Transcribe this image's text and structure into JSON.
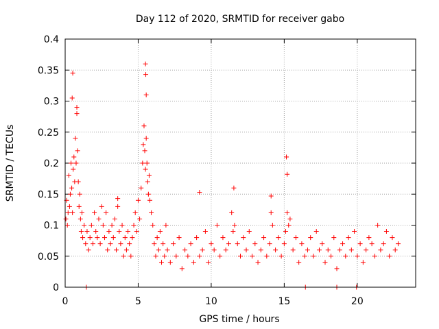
{
  "chart_data": {
    "type": "scatter",
    "title": "Day 112 of 2020, SRMTID for receiver gabo",
    "xlabel": "GPS time / hours",
    "ylabel": "SRMTID / TECUs",
    "xlim": [
      0,
      24
    ],
    "ylim": [
      0,
      0.4
    ],
    "xticks": [
      0,
      5,
      10,
      15,
      20
    ],
    "xtick_labels": [
      "0",
      "5",
      "10",
      "15",
      "20"
    ],
    "yticks": [
      0,
      0.05,
      0.1,
      0.15,
      0.2,
      0.25,
      0.3,
      0.35,
      0.4
    ],
    "ytick_labels": [
      "0",
      "0.05",
      "0.1",
      "0.15",
      "0.2",
      "0.25",
      "0.3",
      "0.35",
      "0.4"
    ],
    "grid": true,
    "marker": "+",
    "colors": {
      "points": "#ff0000",
      "grid": "#a0a0a0",
      "axes": "#000000"
    },
    "series": [
      {
        "name": "SRMTID",
        "x": [
          0.05,
          0.1,
          0.15,
          0.2,
          0.25,
          0.3,
          0.35,
          0.4,
          0.45,
          0.5,
          0.55,
          0.6,
          0.65,
          0.7,
          0.75,
          0.8,
          0.85,
          0.9,
          0.95,
          1.0,
          1.05,
          1.1,
          1.15,
          1.2,
          1.3,
          1.4,
          1.5,
          1.6,
          1.7,
          1.8,
          1.9,
          2.0,
          2.1,
          2.2,
          2.3,
          2.4,
          2.5,
          2.6,
          2.7,
          2.8,
          2.9,
          3.0,
          3.1,
          3.2,
          3.3,
          3.4,
          3.5,
          3.6,
          3.7,
          3.8,
          3.9,
          4.0,
          4.1,
          4.2,
          4.3,
          4.4,
          4.5,
          4.6,
          4.7,
          4.8,
          4.9,
          5.0,
          5.1,
          5.2,
          5.3,
          5.35,
          5.4,
          5.45,
          5.5,
          5.55,
          5.6,
          5.65,
          5.7,
          5.75,
          5.8,
          5.9,
          6.0,
          6.1,
          6.2,
          6.3,
          6.4,
          6.5,
          6.6,
          6.7,
          6.8,
          6.9,
          7.0,
          7.2,
          7.4,
          7.6,
          7.8,
          8.0,
          8.2,
          8.4,
          8.6,
          8.8,
          9.0,
          9.2,
          9.4,
          9.6,
          9.8,
          10.0,
          10.2,
          10.4,
          10.6,
          10.8,
          11.0,
          11.2,
          11.4,
          11.5,
          11.6,
          11.8,
          12.0,
          12.2,
          12.4,
          12.6,
          12.8,
          13.0,
          13.2,
          13.4,
          13.6,
          13.8,
          14.0,
          14.1,
          14.2,
          14.4,
          14.6,
          14.8,
          15.0,
          15.1,
          15.2,
          15.3,
          15.4,
          15.6,
          15.8,
          16.0,
          16.2,
          16.4,
          16.6,
          16.8,
          17.0,
          17.2,
          17.4,
          17.6,
          17.8,
          18.0,
          18.2,
          18.4,
          18.6,
          18.8,
          19.0,
          19.2,
          19.4,
          19.6,
          19.8,
          20.0,
          20.2,
          20.4,
          20.6,
          20.8,
          21.0,
          21.2,
          21.4,
          21.6,
          21.8,
          22.0,
          22.2,
          22.4,
          22.6,
          22.8,
          1.45,
          16.45,
          18.6,
          19.95,
          0.48,
          0.52,
          0.8,
          5.5,
          5.52,
          5.55,
          15.15,
          15.2,
          11.55,
          9.2,
          14.1,
          3.6
        ],
        "y": [
          0.11,
          0.14,
          0.1,
          0.12,
          0.18,
          0.13,
          0.15,
          0.2,
          0.16,
          0.12,
          0.19,
          0.21,
          0.17,
          0.24,
          0.2,
          0.28,
          0.22,
          0.17,
          0.13,
          0.15,
          0.11,
          0.09,
          0.12,
          0.08,
          0.1,
          0.07,
          0.09,
          0.06,
          0.08,
          0.1,
          0.07,
          0.12,
          0.09,
          0.08,
          0.11,
          0.07,
          0.13,
          0.1,
          0.08,
          0.12,
          0.06,
          0.09,
          0.07,
          0.1,
          0.08,
          0.11,
          0.06,
          0.13,
          0.09,
          0.07,
          0.1,
          0.05,
          0.08,
          0.06,
          0.09,
          0.07,
          0.05,
          0.08,
          0.1,
          0.12,
          0.09,
          0.14,
          0.11,
          0.16,
          0.2,
          0.23,
          0.26,
          0.22,
          0.19,
          0.24,
          0.2,
          0.17,
          0.15,
          0.18,
          0.14,
          0.12,
          0.1,
          0.07,
          0.05,
          0.08,
          0.06,
          0.09,
          0.04,
          0.07,
          0.05,
          0.1,
          0.06,
          0.04,
          0.07,
          0.05,
          0.08,
          0.03,
          0.06,
          0.05,
          0.07,
          0.04,
          0.08,
          0.05,
          0.06,
          0.09,
          0.04,
          0.07,
          0.06,
          0.1,
          0.05,
          0.08,
          0.06,
          0.07,
          0.12,
          0.09,
          0.1,
          0.07,
          0.05,
          0.08,
          0.06,
          0.09,
          0.05,
          0.07,
          0.04,
          0.06,
          0.08,
          0.05,
          0.07,
          0.12,
          0.1,
          0.06,
          0.08,
          0.05,
          0.07,
          0.09,
          0.12,
          0.1,
          0.11,
          0.06,
          0.08,
          0.04,
          0.07,
          0.05,
          0.06,
          0.08,
          0.05,
          0.09,
          0.06,
          0.07,
          0.04,
          0.06,
          0.05,
          0.08,
          0.03,
          0.06,
          0.07,
          0.05,
          0.08,
          0.06,
          0.09,
          0.05,
          0.07,
          0.04,
          0.06,
          0.08,
          0.07,
          0.05,
          0.1,
          0.06,
          0.07,
          0.09,
          0.05,
          0.08,
          0.06,
          0.07,
          0.0,
          0.0,
          0.0,
          0.0,
          0.305,
          0.345,
          0.29,
          0.36,
          0.343,
          0.31,
          0.21,
          0.182,
          0.16,
          0.153,
          0.147,
          0.143
        ]
      }
    ]
  }
}
